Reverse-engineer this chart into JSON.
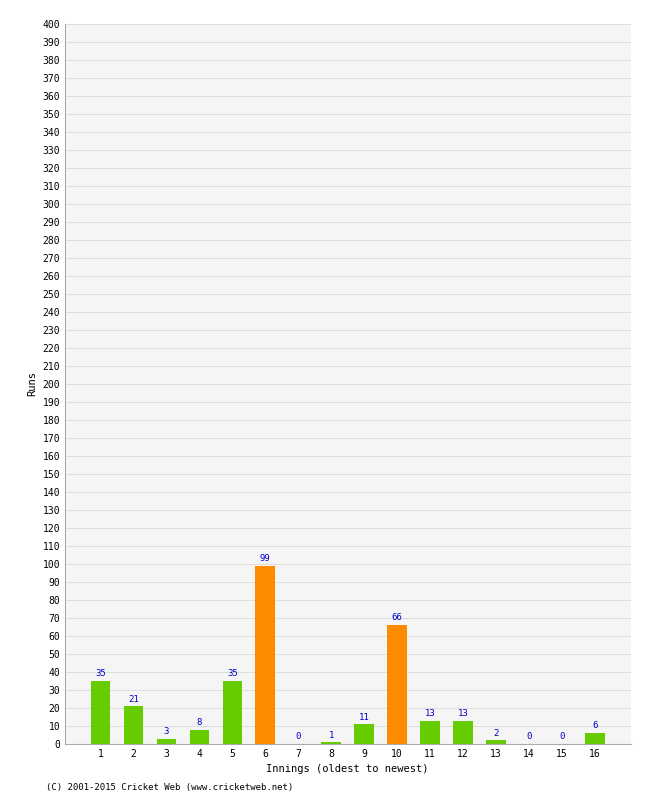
{
  "xlabel": "Innings (oldest to newest)",
  "ylabel": "Runs",
  "categories": [
    1,
    2,
    3,
    4,
    5,
    6,
    7,
    8,
    9,
    10,
    11,
    12,
    13,
    14,
    15,
    16
  ],
  "values": [
    35,
    21,
    3,
    8,
    35,
    99,
    0,
    1,
    11,
    66,
    13,
    13,
    2,
    0,
    0,
    6
  ],
  "bar_colors": [
    "#66cc00",
    "#66cc00",
    "#66cc00",
    "#66cc00",
    "#66cc00",
    "#ff8c00",
    "#66cc00",
    "#66cc00",
    "#66cc00",
    "#ff8c00",
    "#66cc00",
    "#66cc00",
    "#66cc00",
    "#66cc00",
    "#66cc00",
    "#66cc00"
  ],
  "ylim": [
    0,
    400
  ],
  "ytick_step": 10,
  "label_color": "#0000cc",
  "label_fontsize": 6.5,
  "axis_fontsize": 7,
  "xlabel_fontsize": 7.5,
  "ylabel_fontsize": 7.5,
  "background_color": "#ffffff",
  "plot_bg_color": "#f5f5f5",
  "grid_color": "#dddddd",
  "footer": "(C) 2001-2015 Cricket Web (www.cricketweb.net)"
}
